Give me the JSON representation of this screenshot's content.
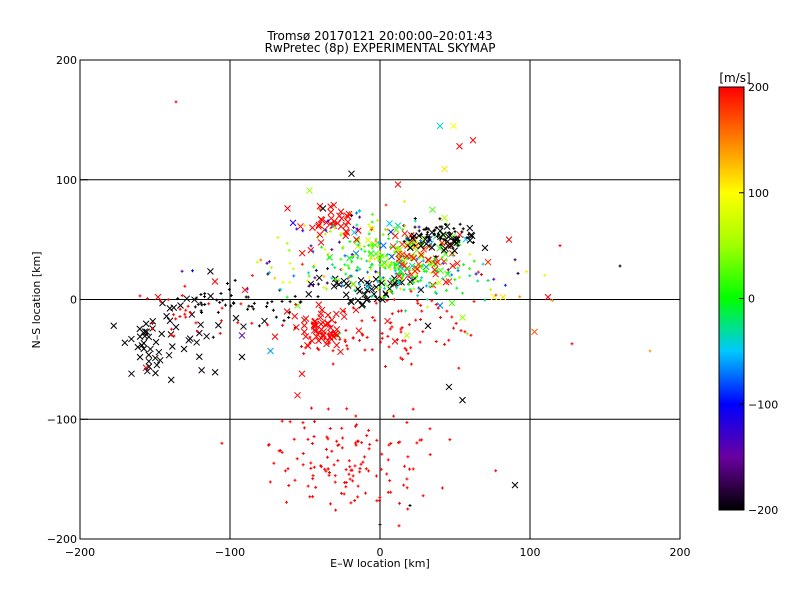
{
  "chart_data": {
    "type": "scatter",
    "title": "Tromsø 20170121 20:00:00–20:01:43",
    "subtitle": "RwPretec (8p) EXPERIMENTAL SKYMAP",
    "xlabel": "E–W location [km]",
    "ylabel": "N–S location [km]",
    "xlim": [
      -200,
      200
    ],
    "ylim": [
      -200,
      200
    ],
    "x_ticks": [
      -200,
      -100,
      0,
      100,
      200
    ],
    "y_ticks": [
      -200,
      -100,
      0,
      100,
      200
    ],
    "x_tick_labels": [
      "−200",
      "−100",
      "0",
      "100",
      "200"
    ],
    "y_tick_labels": [
      "−200",
      "−100",
      "0",
      "100",
      "200"
    ],
    "grid": true,
    "colorbar": {
      "label": "[m/s]",
      "range": [
        -200,
        200
      ],
      "ticks": [
        200,
        100,
        0,
        -100,
        -200
      ],
      "tick_labels": [
        "200",
        "100",
        "0",
        "−100",
        "−200"
      ]
    },
    "points": [
      {
        "x": -136,
        "y": 165,
        "v": 200,
        "m": "+"
      },
      {
        "x": 40,
        "y": 145,
        "v": -40,
        "m": "x"
      },
      {
        "x": 49,
        "y": 145,
        "v": 100,
        "m": "x"
      },
      {
        "x": 62,
        "y": 133,
        "v": 200,
        "m": "x"
      },
      {
        "x": 53,
        "y": 128,
        "v": 200,
        "m": "x"
      },
      {
        "x": 43,
        "y": 109,
        "v": 110,
        "m": "x"
      },
      {
        "x": -19,
        "y": 105,
        "v": -200,
        "m": "x"
      },
      {
        "x": 12,
        "y": 96,
        "v": 200,
        "m": "x"
      },
      {
        "x": -47,
        "y": 91,
        "v": 50,
        "m": "x"
      },
      {
        "x": -40,
        "y": 78,
        "v": 200,
        "m": "x"
      },
      {
        "x": -38,
        "y": 76,
        "v": -200,
        "m": "x"
      },
      {
        "x": -22,
        "y": 70,
        "v": 200,
        "m": "x"
      },
      {
        "x": 35,
        "y": 75,
        "v": 20,
        "m": "x"
      },
      {
        "x": -58,
        "y": 64,
        "v": -120,
        "m": "x"
      },
      {
        "x": 120,
        "y": 45,
        "v": 200,
        "m": "+"
      },
      {
        "x": 160,
        "y": 28,
        "v": -200,
        "m": "+"
      },
      {
        "x": 180,
        "y": -43,
        "v": 140,
        "m": "+"
      },
      {
        "x": 128,
        "y": -37,
        "v": 200,
        "m": "+"
      },
      {
        "x": 112,
        "y": 2,
        "v": 200,
        "m": "x"
      },
      {
        "x": 82,
        "y": 2,
        "v": 110,
        "m": "x"
      },
      {
        "x": 76,
        "y": 2,
        "v": 100,
        "m": "x"
      },
      {
        "x": 86,
        "y": 50,
        "v": 200,
        "m": "x"
      },
      {
        "x": 103,
        "y": -27,
        "v": 170,
        "m": "x"
      },
      {
        "x": 90,
        "y": -155,
        "v": -200,
        "m": "x"
      },
      {
        "x": 46,
        "y": -73,
        "v": -200,
        "m": "x"
      },
      {
        "x": 55,
        "y": -84,
        "v": -200,
        "m": "x"
      },
      {
        "x": 0,
        "y": -188,
        "v": -200,
        "m": "+"
      },
      {
        "x": 20,
        "y": -172,
        "v": -200,
        "m": "+"
      },
      {
        "x": -52,
        "y": -62,
        "v": 200,
        "m": "x"
      },
      {
        "x": -55,
        "y": -80,
        "v": 200,
        "m": "x"
      },
      {
        "x": -125,
        "y": 24,
        "v": -100,
        "m": "+"
      },
      {
        "x": -148,
        "y": 2,
        "v": 200,
        "m": "x"
      },
      {
        "x": -160,
        "y": 3,
        "v": 200,
        "m": "+"
      },
      {
        "x": -156,
        "y": -57,
        "v": 200,
        "m": "x"
      },
      {
        "x": -92,
        "y": -30,
        "v": -140,
        "m": "x"
      },
      {
        "x": -77,
        "y": -18,
        "v": -200,
        "m": "x"
      },
      {
        "x": -70,
        "y": -31,
        "v": 200,
        "m": "x"
      },
      {
        "x": -62,
        "y": -10,
        "v": 200,
        "m": "x"
      },
      {
        "x": -90,
        "y": 8,
        "v": 200,
        "m": "x"
      },
      {
        "x": -110,
        "y": 15,
        "v": 200,
        "m": "x"
      },
      {
        "x": -92,
        "y": -48,
        "v": -200,
        "m": "x"
      },
      {
        "x": -73,
        "y": -43,
        "v": -60,
        "m": "x"
      },
      {
        "x": -55,
        "y": -5,
        "v": 30,
        "m": "x"
      },
      {
        "x": -28,
        "y": -30,
        "v": -10,
        "m": "x"
      },
      {
        "x": 10,
        "y": -35,
        "v": 200,
        "m": "x"
      },
      {
        "x": 18,
        "y": -30,
        "v": 60,
        "m": "x"
      },
      {
        "x": 5,
        "y": -18,
        "v": 200,
        "m": "x"
      },
      {
        "x": 40,
        "y": -5,
        "v": -70,
        "m": "x"
      },
      {
        "x": 48,
        "y": -3,
        "v": 20,
        "m": "x"
      },
      {
        "x": 32,
        "y": -22,
        "v": -200,
        "m": "x"
      },
      {
        "x": 55,
        "y": -15,
        "v": 50,
        "m": "x"
      },
      {
        "x": -145,
        "y": -3,
        "v": -200,
        "m": "x"
      },
      {
        "x": -133,
        "y": -5,
        "v": -200,
        "m": "x"
      }
    ],
    "clusters": [
      {
        "cx": -155,
        "cy": -35,
        "sx": 10,
        "sy": 13,
        "n": 32,
        "v": [
          -200,
          -200
        ],
        "m": "x",
        "crot": -0.15
      },
      {
        "cx": -128,
        "cy": -30,
        "sx": 16,
        "sy": 18,
        "n": 26,
        "v": [
          -200,
          -190
        ],
        "m": "x",
        "crot": 0
      },
      {
        "cx": -108,
        "cy": 0,
        "sx": 14,
        "sy": 10,
        "n": 22,
        "v": [
          -200,
          -200
        ],
        "m": "+",
        "crot": 0
      },
      {
        "cx": -120,
        "cy": -12,
        "sx": 25,
        "sy": 10,
        "n": 30,
        "v": [
          200,
          200
        ],
        "m": "+",
        "crot": 0
      },
      {
        "cx": -75,
        "cy": -8,
        "sx": 18,
        "sy": 10,
        "n": 28,
        "v": [
          -200,
          -200
        ],
        "m": "+",
        "crot": 0
      },
      {
        "cx": -38,
        "cy": -25,
        "sx": 10,
        "sy": 10,
        "n": 55,
        "v": [
          200,
          200
        ],
        "m": "x",
        "crot": 0
      },
      {
        "cx": -30,
        "cy": -30,
        "sx": 12,
        "sy": 12,
        "n": 35,
        "v": [
          200,
          200
        ],
        "m": "+",
        "crot": 0
      },
      {
        "cx": -10,
        "cy": 10,
        "sx": 18,
        "sy": 8,
        "n": 45,
        "v": [
          -200,
          -200
        ],
        "m": "x",
        "crot": 0
      },
      {
        "cx": 10,
        "cy": 30,
        "sx": 22,
        "sy": 15,
        "n": 120,
        "v": [
          -80,
          120
        ],
        "m": "+",
        "crot": 0
      },
      {
        "cx": 20,
        "cy": 40,
        "sx": 22,
        "sy": 12,
        "n": 60,
        "v": [
          -90,
          100
        ],
        "m": "x",
        "crot": 0
      },
      {
        "cx": -5,
        "cy": 45,
        "sx": 25,
        "sy": 12,
        "n": 55,
        "v": [
          -20,
          80
        ],
        "m": "+",
        "crot": 0
      },
      {
        "cx": 30,
        "cy": 35,
        "sx": 15,
        "sy": 10,
        "n": 45,
        "v": [
          180,
          200
        ],
        "m": "x",
        "crot": 0
      },
      {
        "cx": 40,
        "cy": 52,
        "sx": 12,
        "sy": 6,
        "n": 55,
        "v": [
          -200,
          -200
        ],
        "m": "+",
        "crot": 0
      },
      {
        "cx": 45,
        "cy": 50,
        "sx": 12,
        "sy": 5,
        "n": 30,
        "v": [
          -200,
          -200
        ],
        "m": "x",
        "crot": 0
      },
      {
        "cx": -35,
        "cy": 60,
        "sx": 9,
        "sy": 8,
        "n": 35,
        "v": [
          200,
          200
        ],
        "m": "x",
        "crot": 0
      },
      {
        "cx": -20,
        "cy": 55,
        "sx": 25,
        "sy": 15,
        "n": 45,
        "v": [
          -200,
          200
        ],
        "m": "+",
        "crot": 0
      },
      {
        "cx": 20,
        "cy": -25,
        "sx": 22,
        "sy": 14,
        "n": 60,
        "v": [
          200,
          200
        ],
        "m": "+",
        "crot": 0
      },
      {
        "cx": -20,
        "cy": -135,
        "sx": 28,
        "sy": 22,
        "n": 140,
        "v": [
          200,
          200
        ],
        "m": "+",
        "crot": 0
      },
      {
        "cx": 15,
        "cy": 20,
        "sx": 20,
        "sy": 10,
        "n": 60,
        "v": [
          -40,
          20
        ],
        "m": "+",
        "crot": 0
      },
      {
        "cx": -45,
        "cy": 20,
        "sx": 25,
        "sy": 10,
        "n": 40,
        "v": [
          -200,
          200
        ],
        "m": "+",
        "crot": 0
      },
      {
        "cx": 70,
        "cy": 20,
        "sx": 20,
        "sy": 15,
        "n": 22,
        "v": [
          -200,
          200
        ],
        "m": "+",
        "crot": 0
      }
    ]
  }
}
